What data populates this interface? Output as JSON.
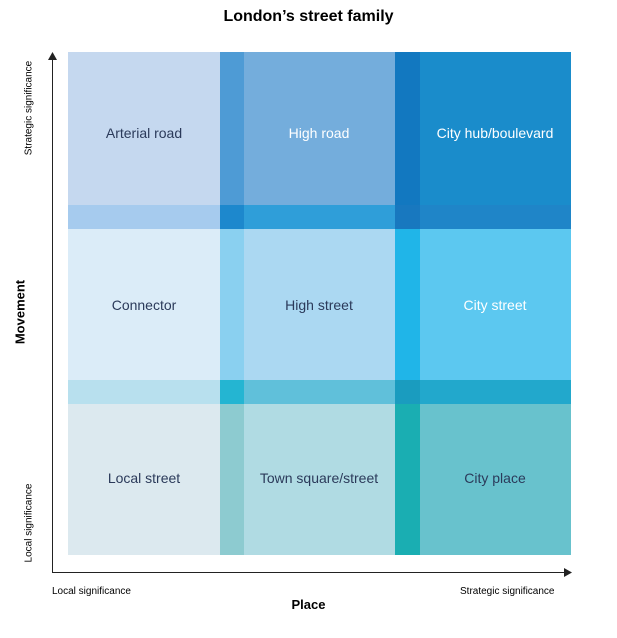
{
  "title": "London’s street family",
  "axes": {
    "x_label": "Place",
    "y_label": "Movement",
    "x_low": "Local significance",
    "x_high": "Strategic significance",
    "y_low": "Local significance",
    "y_high": "Strategic significance"
  },
  "cells": {
    "arterial": "Arterial road",
    "high_road": "High road",
    "city_hub": "City hub/boulevard",
    "connector": "Connector",
    "high_street": "High street",
    "city_street": "City street",
    "local_street": "Local street",
    "town_square": "Town square/street",
    "city_place": "City place"
  },
  "colors": {
    "arterial": "#c5d8ef",
    "high_road": "#74addc",
    "city_hub": "#1a8ccb",
    "connector": "#dbecf8",
    "high_street": "#abd8f2",
    "city_street": "#5cc8f0",
    "local_street": "#dce9ef",
    "town_square": "#b0dbe3",
    "city_place": "#68c2cd",
    "v1_top": "#4e9bd5",
    "v1_mid": "#8ad0f0",
    "v1_bot": "#8dcbd0",
    "v2_top": "#1278c0",
    "v2_mid": "#20b5e8",
    "v2_bot": "#1aaeb2",
    "h1_col1": "#a6cbee",
    "h1_col2": "#2f9ed9",
    "h1_col3": "#1f85c8",
    "h2_col1": "#b8e0ee",
    "h2_col2": "#60c0da",
    "h2_col3": "#22a8cc",
    "i11": "#1d88cd",
    "i12": "#1878bf",
    "i21": "#24b5d2",
    "i22": "#1a9cbf"
  }
}
